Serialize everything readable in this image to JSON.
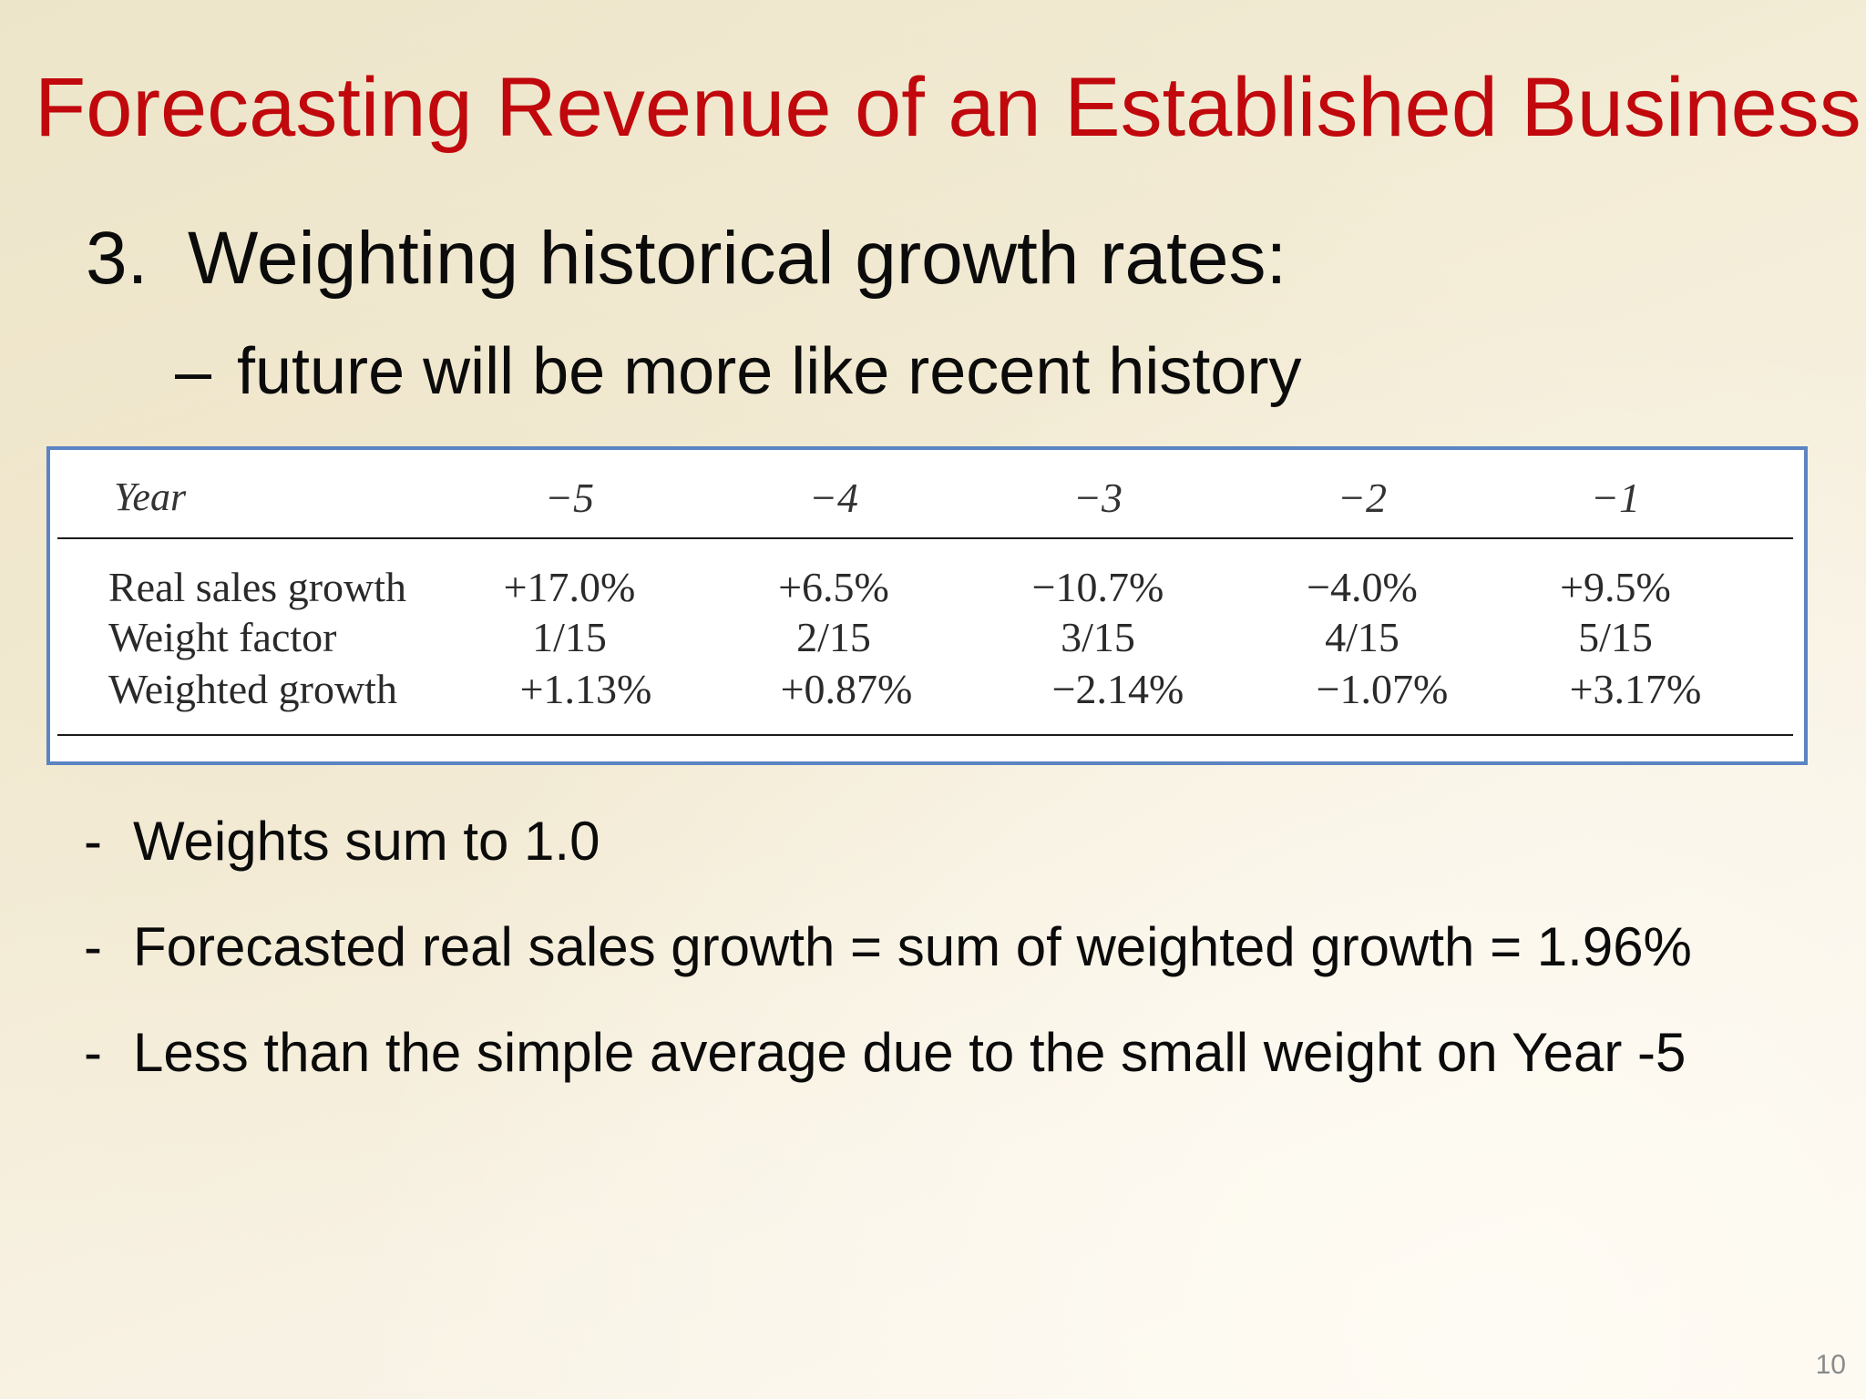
{
  "slide": {
    "title": "Forecasting Revenue of an Established Business",
    "heading_number": "3.",
    "heading_text": "Weighting historical growth rates:",
    "subpoint_dash": "–",
    "subpoint_text": "future will be more like recent history",
    "page_number": "10"
  },
  "table": {
    "header_label": "Year",
    "columns": [
      "−5",
      "−4",
      "−3",
      "−2",
      "−1"
    ],
    "rows": [
      {
        "label": "Real sales growth",
        "values": [
          "+17.0%",
          "+6.5%",
          "−10.7%",
          "−4.0%",
          "+9.5%"
        ]
      },
      {
        "label": "Weight factor",
        "values": [
          "1/15",
          "2/15",
          "3/15",
          "4/15",
          "5/15"
        ]
      },
      {
        "label": "Weighted growth",
        "values": [
          "+1.13%",
          "+0.87%",
          "−2.14%",
          "−1.07%",
          "+3.17%"
        ]
      }
    ]
  },
  "bullets": [
    {
      "marker": "-",
      "text": "Weights sum to 1.0"
    },
    {
      "marker": "-",
      "text": "Forecasted real sales growth = sum of weighted growth = 1.96%"
    },
    {
      "marker": "-",
      "text": "Less than the simple average due to the small weight on Year -5"
    }
  ],
  "colors": {
    "title": "#c0080d",
    "table_border": "#5a84c2"
  }
}
